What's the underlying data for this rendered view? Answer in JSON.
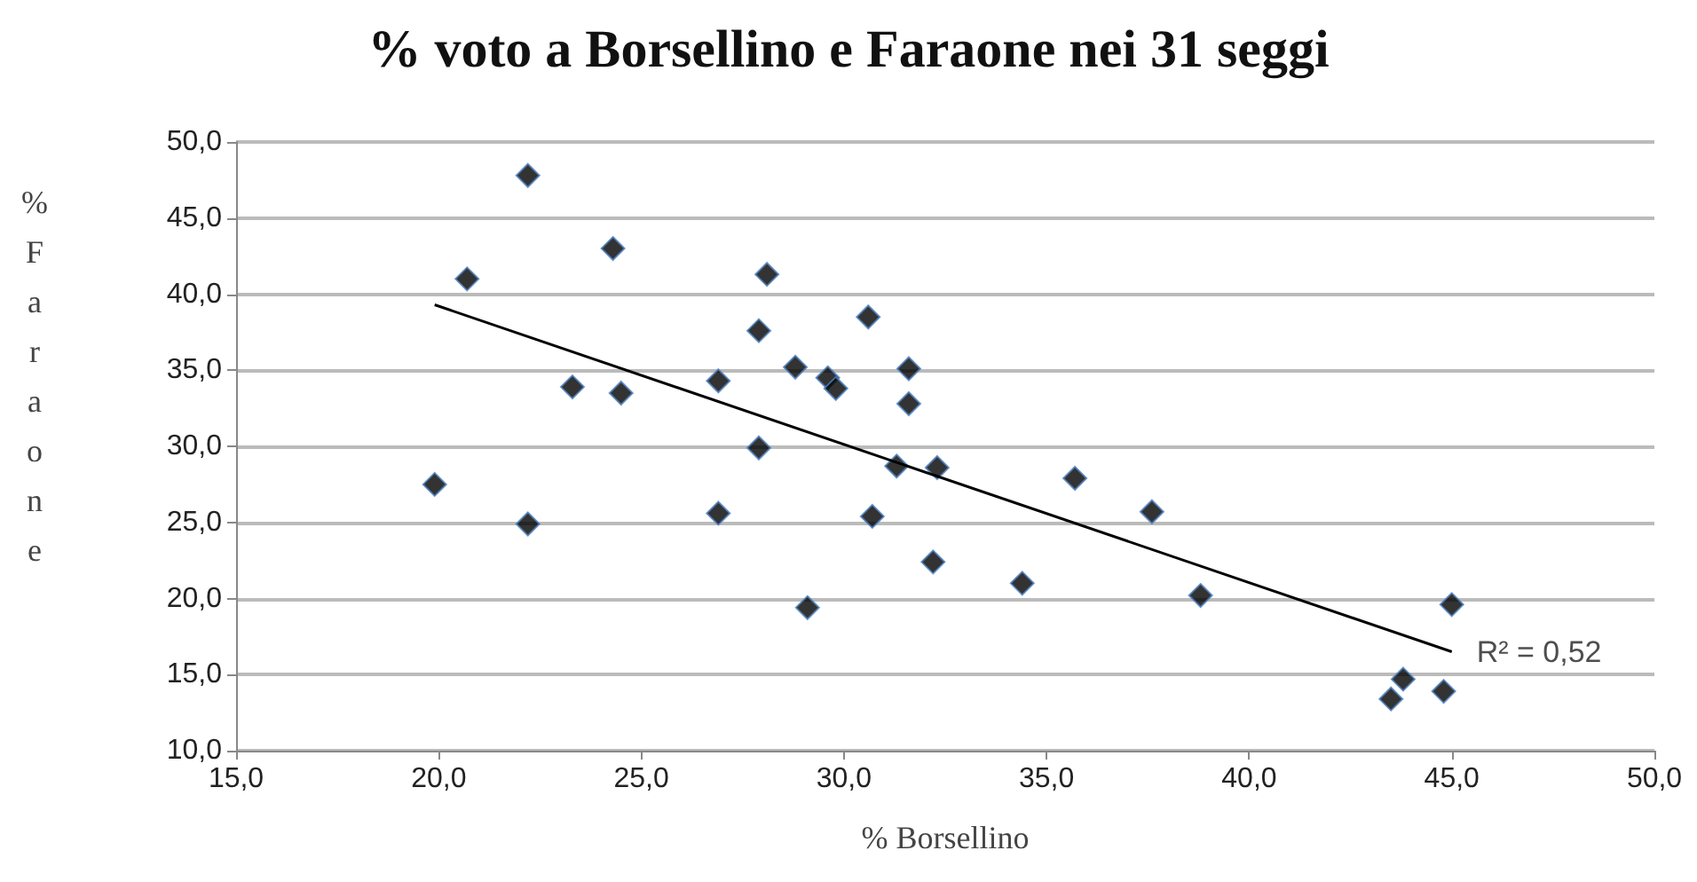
{
  "chart_data": {
    "type": "scatter",
    "title": "% voto a Borsellino e Faraone nei 31 seggi",
    "xlabel": "% Borsellino",
    "ylabel": "% Faraone",
    "series": [
      {
        "color": "#000000",
        "marker": "diamond",
        "x": [
          19.9,
          20.7,
          22.2,
          22.2,
          23.3,
          24.3,
          24.5,
          26.9,
          26.9,
          27.9,
          27.9,
          28.1,
          28.8,
          29.6,
          29.8,
          29.1,
          30.6,
          30.7,
          31.3,
          31.6,
          31.6,
          32.2,
          32.3,
          34.4,
          35.7,
          37.6,
          38.8,
          43.5,
          43.8,
          44.8,
          45.0
        ],
        "values": [
          27.5,
          41.0,
          47.8,
          24.9,
          33.9,
          43.0,
          33.5,
          34.3,
          25.6,
          37.6,
          29.9,
          41.3,
          35.2,
          34.5,
          33.8,
          19.4,
          38.5,
          25.4,
          28.7,
          35.1,
          32.8,
          22.4,
          28.6,
          21.0,
          27.9,
          25.7,
          20.2,
          13.4,
          14.7,
          13.9,
          19.6
        ]
      },
      {
        "type": "line",
        "color": "#000000",
        "marker": "none",
        "line_style": "solid",
        "x": [
          19.9,
          45.0
        ],
        "values": [
          39.3,
          16.5
        ]
      }
    ],
    "annotations": [
      {
        "text": "R² = 0,52",
        "x": 45.0,
        "y": 16.5
      }
    ],
    "xlim": [
      15,
      50
    ],
    "xticks": [
      {
        "value": 15,
        "label": "15,0"
      },
      {
        "value": 20,
        "label": "20,0"
      },
      {
        "value": 25,
        "label": "25,0"
      },
      {
        "value": 30,
        "label": "30,0"
      },
      {
        "value": 35,
        "label": "35,0"
      },
      {
        "value": 40,
        "label": "40,0"
      },
      {
        "value": 45,
        "label": "45,0"
      },
      {
        "value": 50,
        "label": "50,0"
      }
    ],
    "ylim": [
      10,
      50
    ],
    "yticks": [
      {
        "value": 10,
        "label": "10,0"
      },
      {
        "value": 15,
        "label": "15,0"
      },
      {
        "value": 20,
        "label": "20,0"
      },
      {
        "value": 25,
        "label": "25,0"
      },
      {
        "value": 30,
        "label": "30,0"
      },
      {
        "value": 35,
        "label": "35,0"
      },
      {
        "value": 40,
        "label": "40,0"
      },
      {
        "value": 45,
        "label": "45,0"
      },
      {
        "value": 50,
        "label": "50,0"
      }
    ],
    "grid": "y"
  }
}
